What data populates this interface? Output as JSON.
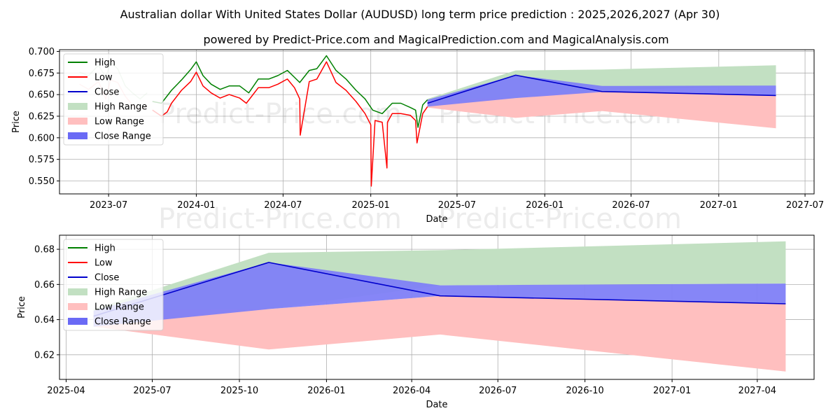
{
  "title": "Australian dollar With United States Dollar (AUDUSD) long term price prediction : 2025,2026,2027 (Apr 30)",
  "subtitle": "powered by Predict-Price.com and MagicalPrediction.com and MagicalAnalysis.com",
  "watermark": "Predict-Price.com",
  "colors": {
    "high": "#008000",
    "low": "#ff0000",
    "close": "#0000cc",
    "high_range": "#c2e0c2",
    "low_range": "#ffbfbf",
    "close_range": "#7f7ff7",
    "grid": "#b0b0b0"
  },
  "chart_data": [
    {
      "type": "line",
      "xlabel": "Date",
      "ylabel": "Price",
      "xlim": [
        "2023-03-20",
        "2027-07-20"
      ],
      "ylim": [
        0.535,
        0.702
      ],
      "x_ticks": [
        "2023-07-01",
        "2024-01-01",
        "2024-07-01",
        "2025-01-01",
        "2025-07-01",
        "2026-01-01",
        "2026-07-01",
        "2027-01-01",
        "2027-07-01"
      ],
      "x_tick_labels": [
        "2023-07",
        "2024-01",
        "2024-07",
        "2025-01",
        "2025-07",
        "2026-01",
        "2026-07",
        "2027-01",
        "2027-07"
      ],
      "y_ticks": [
        0.55,
        0.575,
        0.6,
        0.625,
        0.65,
        0.675,
        0.7
      ],
      "y_tick_labels": [
        "0.550",
        "0.575",
        "0.600",
        "0.625",
        "0.650",
        "0.675",
        "0.700"
      ],
      "grid": true,
      "legend_position": "top-left",
      "legend": [
        "High",
        "Low",
        "Close",
        "High Range",
        "Low Range",
        "Close Range"
      ],
      "faded_history": {
        "x": [
          "2023-05-01",
          "2023-05-20",
          "2023-06-10",
          "2023-06-25",
          "2023-07-05",
          "2023-07-20",
          "2023-08-05",
          "2023-08-20",
          "2023-09-05",
          "2023-09-20"
        ],
        "high": [
          0.676,
          0.672,
          0.684,
          0.67,
          0.687,
          0.68,
          0.66,
          0.652,
          0.645,
          0.652
        ],
        "low": [
          0.662,
          0.656,
          0.665,
          0.645,
          0.667,
          0.664,
          0.648,
          0.638,
          0.632,
          0.637
        ]
      },
      "series": [
        {
          "name": "High",
          "x": [
            "2023-10-01",
            "2023-10-20",
            "2023-11-10",
            "2023-12-01",
            "2023-12-20",
            "2024-01-01",
            "2024-01-15",
            "2024-02-01",
            "2024-02-20",
            "2024-03-10",
            "2024-04-01",
            "2024-04-20",
            "2024-05-10",
            "2024-06-01",
            "2024-06-20",
            "2024-07-10",
            "2024-07-25",
            "2024-08-05",
            "2024-08-25",
            "2024-09-10",
            "2024-09-30",
            "2024-10-20",
            "2024-11-10",
            "2024-12-01",
            "2024-12-20",
            "2025-01-05",
            "2025-01-25",
            "2025-02-15",
            "2025-03-05",
            "2025-03-25",
            "2025-04-05",
            "2025-04-10",
            "2025-04-20",
            "2025-04-30"
          ],
          "values": [
            0.642,
            0.64,
            0.655,
            0.667,
            0.679,
            0.688,
            0.672,
            0.662,
            0.656,
            0.66,
            0.66,
            0.652,
            0.668,
            0.668,
            0.672,
            0.678,
            0.67,
            0.664,
            0.678,
            0.68,
            0.695,
            0.678,
            0.668,
            0.655,
            0.645,
            0.632,
            0.628,
            0.64,
            0.64,
            0.635,
            0.632,
            0.612,
            0.638,
            0.644
          ]
        },
        {
          "name": "Low",
          "x": [
            "2023-10-01",
            "2023-10-20",
            "2023-11-01",
            "2023-11-10",
            "2023-12-01",
            "2023-12-20",
            "2024-01-01",
            "2024-01-15",
            "2024-02-01",
            "2024-02-20",
            "2024-03-10",
            "2024-04-01",
            "2024-04-15",
            "2024-05-10",
            "2024-06-01",
            "2024-06-20",
            "2024-07-10",
            "2024-07-25",
            "2024-08-05",
            "2024-08-06",
            "2024-08-25",
            "2024-09-10",
            "2024-09-30",
            "2024-10-20",
            "2024-11-10",
            "2024-12-01",
            "2024-12-20",
            "2025-01-01",
            "2025-01-02",
            "2025-01-10",
            "2025-01-25",
            "2025-02-04",
            "2025-02-05",
            "2025-02-15",
            "2025-03-05",
            "2025-03-25",
            "2025-04-05",
            "2025-04-08",
            "2025-04-20",
            "2025-04-30"
          ],
          "values": [
            0.632,
            0.625,
            0.63,
            0.64,
            0.655,
            0.665,
            0.676,
            0.66,
            0.652,
            0.646,
            0.65,
            0.646,
            0.64,
            0.658,
            0.658,
            0.662,
            0.668,
            0.658,
            0.645,
            0.603,
            0.665,
            0.668,
            0.688,
            0.664,
            0.655,
            0.642,
            0.628,
            0.615,
            0.544,
            0.62,
            0.618,
            0.565,
            0.618,
            0.628,
            0.628,
            0.626,
            0.62,
            0.594,
            0.628,
            0.636
          ]
        },
        {
          "name": "Close",
          "x": [
            "2025-04-30",
            "2025-11-01",
            "2026-05-01",
            "2027-05-01"
          ],
          "values": [
            0.64,
            0.6725,
            0.6535,
            0.649
          ]
        }
      ],
      "ranges": [
        {
          "name": "High Range",
          "x": [
            "2025-04-30",
            "2025-11-01",
            "2026-05-01",
            "2027-05-01"
          ],
          "upper": [
            0.645,
            0.678,
            0.679,
            0.684
          ],
          "lower": [
            0.636,
            0.646,
            0.655,
            0.66
          ]
        },
        {
          "name": "Low Range",
          "x": [
            "2025-04-30",
            "2025-11-01",
            "2026-05-01",
            "2027-05-01"
          ],
          "upper": [
            0.644,
            0.646,
            0.655,
            0.649
          ],
          "lower": [
            0.635,
            0.623,
            0.631,
            0.611
          ]
        },
        {
          "name": "Close Range",
          "x": [
            "2025-04-30",
            "2025-11-01",
            "2026-05-01",
            "2027-05-01"
          ],
          "upper": [
            0.644,
            0.6725,
            0.66,
            0.6605
          ],
          "lower": [
            0.636,
            0.646,
            0.653,
            0.649
          ]
        }
      ]
    },
    {
      "type": "line",
      "xlabel": "Date",
      "ylabel": "Price",
      "xlim": [
        "2025-03-25",
        "2027-05-31"
      ],
      "ylim": [
        0.606,
        0.688
      ],
      "x_ticks": [
        "2025-04-01",
        "2025-07-01",
        "2025-10-01",
        "2026-01-01",
        "2026-04-01",
        "2026-07-01",
        "2026-10-01",
        "2027-01-01",
        "2027-04-01"
      ],
      "x_tick_labels": [
        "2025-04",
        "2025-07",
        "2025-10",
        "2026-01",
        "2026-04",
        "2026-07",
        "2026-10",
        "2027-01",
        "2027-04"
      ],
      "y_ticks": [
        0.62,
        0.64,
        0.66,
        0.68
      ],
      "y_tick_labels": [
        "0.62",
        "0.64",
        "0.66",
        "0.68"
      ],
      "grid": true,
      "legend_position": "top-left",
      "legend": [
        "High",
        "Low",
        "Close",
        "High Range",
        "Low Range",
        "Close Range"
      ],
      "series": [
        {
          "name": "Close",
          "x": [
            "2025-04-30",
            "2025-11-01",
            "2026-05-01",
            "2027-05-01"
          ],
          "values": [
            0.642,
            0.6725,
            0.6535,
            0.649
          ]
        }
      ],
      "ranges": [
        {
          "name": "High Range",
          "x": [
            "2025-04-30",
            "2025-11-01",
            "2026-05-01",
            "2027-05-01"
          ],
          "upper": [
            0.646,
            0.678,
            0.6795,
            0.6845
          ],
          "lower": [
            0.638,
            0.646,
            0.6595,
            0.6605
          ]
        },
        {
          "name": "Low Range",
          "x": [
            "2025-04-30",
            "2025-11-01",
            "2026-05-01",
            "2027-05-01"
          ],
          "upper": [
            0.645,
            0.646,
            0.6535,
            0.649
          ],
          "lower": [
            0.636,
            0.623,
            0.6315,
            0.6105
          ]
        },
        {
          "name": "Close Range",
          "x": [
            "2025-04-30",
            "2025-11-01",
            "2026-05-01",
            "2027-05-01"
          ],
          "upper": [
            0.645,
            0.6725,
            0.6595,
            0.6605
          ],
          "lower": [
            0.636,
            0.646,
            0.6535,
            0.649
          ]
        }
      ]
    }
  ]
}
